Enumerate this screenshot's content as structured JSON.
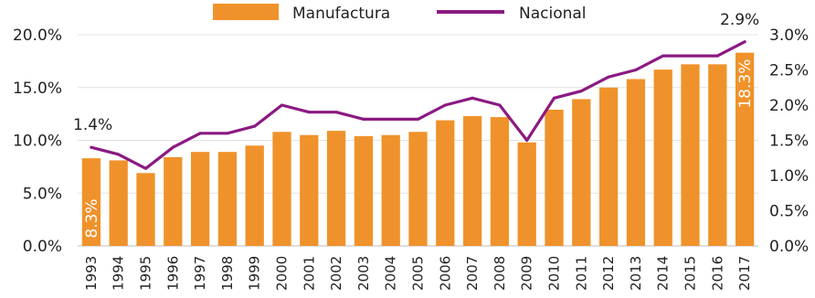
{
  "chart_data": {
    "type": "bar",
    "categories": [
      "1993",
      "1994",
      "1995",
      "1996",
      "1997",
      "1998",
      "1999",
      "2000",
      "2001",
      "2002",
      "2003",
      "2004",
      "2005",
      "2006",
      "2007",
      "2008",
      "2009",
      "2010",
      "2011",
      "2012",
      "2013",
      "2014",
      "2015",
      "2016",
      "2017"
    ],
    "series": [
      {
        "name": "Manufactura",
        "type": "bar",
        "axis": "left",
        "color": "#F0922B",
        "values": [
          8.3,
          8.1,
          6.9,
          8.4,
          8.9,
          8.9,
          9.5,
          10.8,
          10.5,
          10.9,
          10.4,
          10.5,
          10.8,
          11.9,
          12.3,
          12.2,
          9.8,
          12.9,
          13.9,
          15.0,
          15.8,
          16.7,
          17.2,
          17.2,
          18.3
        ]
      },
      {
        "name": "Nacional",
        "type": "line",
        "axis": "right",
        "color": "#8B1A82",
        "values": [
          1.4,
          1.3,
          1.1,
          1.4,
          1.6,
          1.6,
          1.7,
          2.0,
          1.9,
          1.9,
          1.8,
          1.8,
          1.8,
          2.0,
          2.1,
          2.0,
          1.5,
          2.1,
          2.2,
          2.4,
          2.5,
          2.7,
          2.7,
          2.7,
          2.9
        ]
      }
    ],
    "left_axis": {
      "ticks": [
        "0.0%",
        "5.0%",
        "10.0%",
        "15.0%",
        "20.0%"
      ],
      "ylim": [
        0,
        20
      ]
    },
    "right_axis": {
      "ticks": [
        "0.0%",
        "0.5%",
        "1.0%",
        "1.5%",
        "2.0%",
        "2.5%",
        "3.0%"
      ],
      "ylim": [
        0,
        3.0
      ]
    },
    "annotations": {
      "bar_first": "8.3%",
      "bar_last": "18.3%",
      "line_first": "1.4%",
      "line_last": "2.9%"
    },
    "legend_position": "top",
    "grid": true,
    "title": "",
    "xlabel": "",
    "ylabel": ""
  }
}
